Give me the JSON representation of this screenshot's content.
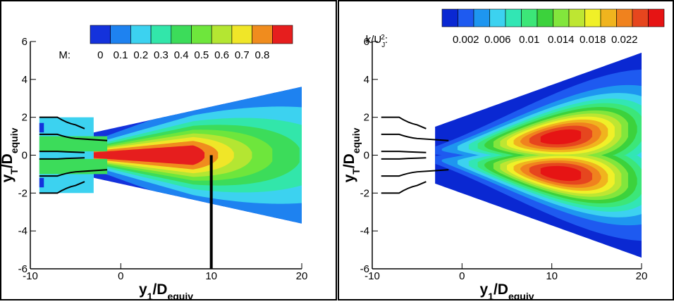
{
  "chart_data": [
    {
      "type": "contour",
      "xlabel": [
        "y",
        "1",
        "/D",
        "equiv"
      ],
      "ylabel": [
        "y",
        "T",
        "/D",
        "equiv"
      ],
      "xlim": [
        -10,
        20
      ],
      "xticks": [
        -10,
        0,
        10,
        20
      ],
      "ylim": [
        -6,
        6
      ],
      "yticks": [
        -6,
        -4,
        -2,
        0,
        2,
        4,
        6
      ],
      "colorbar": {
        "label": [
          "M:"
        ],
        "clim": [
          -0.05,
          0.95
        ],
        "ticks": [
          0,
          0.1,
          0.2,
          0.3,
          0.4,
          0.5,
          0.6,
          0.7,
          0.8
        ],
        "colors": [
          "#1432dc",
          "#1e82f0",
          "#3cd2f0",
          "#32e6aa",
          "#3cdc5a",
          "#6ee63c",
          "#b4e632",
          "#f0e628",
          "#f08c1e",
          "#e61e1e"
        ]
      }
    },
    {
      "type": "contour",
      "xlabel": [
        "y",
        "1",
        "/D",
        "equiv"
      ],
      "ylabel": [
        "y",
        "T",
        "/D",
        "equiv"
      ],
      "xlim": [
        -10,
        20
      ],
      "xticks": [
        -10,
        0,
        10,
        20
      ],
      "ylim": [
        -6,
        6
      ],
      "yticks": [
        -6,
        -4,
        -2,
        0,
        2,
        4,
        6
      ],
      "colorbar": {
        "label": [
          "k/U",
          "J",
          "2",
          ":"
        ],
        "clim": [
          -0.001,
          0.027
        ],
        "ticks": [
          0.002,
          0.006,
          0.01,
          0.014,
          0.018,
          0.022
        ],
        "colors": [
          "#0a28d2",
          "#1e5af0",
          "#1e96f0",
          "#3cd2f0",
          "#32e6b4",
          "#3ce678",
          "#3cd23c",
          "#82e63c",
          "#bee632",
          "#f0f028",
          "#f0b41e",
          "#f0821e",
          "#e6461e",
          "#e61414"
        ]
      }
    }
  ]
}
